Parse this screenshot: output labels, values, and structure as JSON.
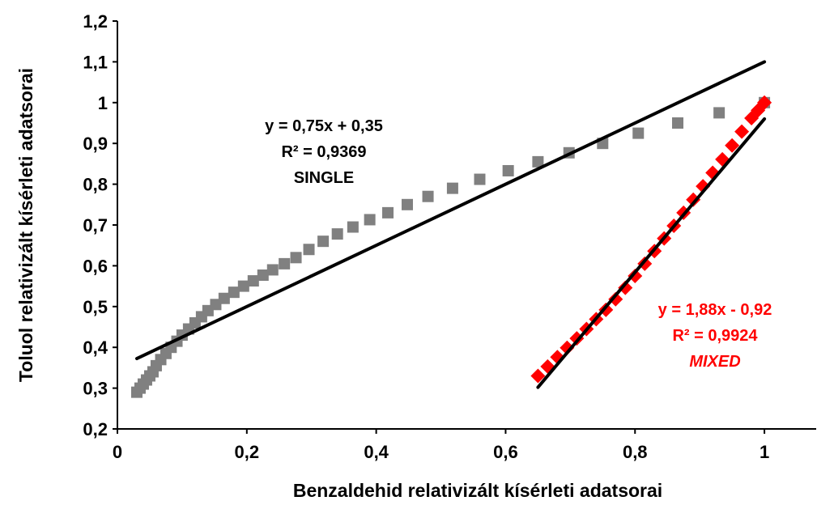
{
  "chart_data": {
    "type": "scatter",
    "xlabel": "Benzaldehid  relativizált  kísérleti adatsorai",
    "ylabel": "Toluol relativizált  kísérleti adatsorai",
    "xlim": [
      0,
      1.08
    ],
    "ylim": [
      0.2,
      1.2
    ],
    "x_ticks": [
      "0",
      "0,2",
      "0,4",
      "0,6",
      "0,8",
      "1"
    ],
    "x_tick_values": [
      0,
      0.2,
      0.4,
      0.6,
      0.8,
      1
    ],
    "y_ticks": [
      "0,2",
      "0,3",
      "0,4",
      "0,5",
      "0,6",
      "0,7",
      "0,8",
      "0,9",
      "1",
      "1,1",
      "1,2"
    ],
    "y_tick_values": [
      0.2,
      0.3,
      0.4,
      0.5,
      0.6,
      0.7,
      0.8,
      0.9,
      1.0,
      1.1,
      1.2
    ],
    "grid": false,
    "series": [
      {
        "color": "#808080",
        "marker": "square",
        "x": [
          0.03,
          0.035,
          0.04,
          0.045,
          0.05,
          0.055,
          0.06,
          0.067,
          0.075,
          0.083,
          0.092,
          0.1,
          0.11,
          0.12,
          0.13,
          0.14,
          0.152,
          0.165,
          0.18,
          0.195,
          0.21,
          0.225,
          0.24,
          0.258,
          0.276,
          0.296,
          0.318,
          0.34,
          0.364,
          0.39,
          0.418,
          0.448,
          0.48,
          0.518,
          0.56,
          0.604,
          0.65,
          0.698,
          0.75,
          0.805,
          0.866,
          0.93,
          1.0
        ],
        "y": [
          0.29,
          0.3,
          0.31,
          0.32,
          0.33,
          0.34,
          0.355,
          0.37,
          0.385,
          0.4,
          0.415,
          0.43,
          0.445,
          0.46,
          0.475,
          0.49,
          0.505,
          0.52,
          0.535,
          0.55,
          0.563,
          0.577,
          0.59,
          0.605,
          0.62,
          0.64,
          0.66,
          0.678,
          0.695,
          0.713,
          0.73,
          0.75,
          0.77,
          0.79,
          0.812,
          0.833,
          0.855,
          0.877,
          0.9,
          0.925,
          0.95,
          0.975,
          1.0
        ]
      },
      {
        "color": "#ff0000",
        "marker": "diamond",
        "x": [
          0.65,
          0.665,
          0.68,
          0.695,
          0.71,
          0.725,
          0.74,
          0.755,
          0.77,
          0.785,
          0.8,
          0.815,
          0.83,
          0.845,
          0.86,
          0.875,
          0.89,
          0.905,
          0.92,
          0.935,
          0.95,
          0.965,
          0.98,
          0.99,
          1.0
        ],
        "y": [
          0.33,
          0.353,
          0.376,
          0.399,
          0.422,
          0.445,
          0.469,
          0.492,
          0.518,
          0.546,
          0.575,
          0.605,
          0.636,
          0.667,
          0.698,
          0.73,
          0.762,
          0.795,
          0.828,
          0.861,
          0.895,
          0.929,
          0.962,
          0.981,
          1.0
        ]
      }
    ],
    "trendlines": [
      {
        "slope": 0.75,
        "intercept": 0.35,
        "x_range": [
          0.03,
          1.0
        ],
        "color": "#000000"
      },
      {
        "slope": 1.88,
        "intercept": -0.92,
        "x_range": [
          0.65,
          1.0
        ],
        "color": "#000000"
      }
    ],
    "annotations": [
      {
        "lines": [
          "y = 0,75x + 0,35",
          "R² = 0,9369",
          "SINGLE"
        ],
        "color": "#000000",
        "italic_last": false
      },
      {
        "lines": [
          "y = 1,88x - 0,92",
          "R² = 0,9924",
          "MIXED"
        ],
        "color": "#ff0000",
        "italic_last": true
      }
    ]
  }
}
